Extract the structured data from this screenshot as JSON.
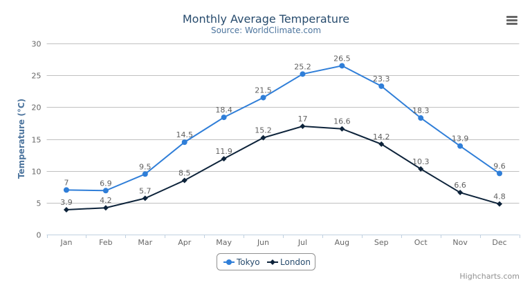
{
  "menu_icon": "hamburger-menu-icon",
  "credits": "Highcharts.com",
  "chart_data": {
    "type": "line",
    "title": "Monthly Average Temperature",
    "subtitle": "Source: WorldClimate.com",
    "xlabel": "",
    "ylabel": "Temperature (°C)",
    "categories": [
      "Jan",
      "Feb",
      "Mar",
      "Apr",
      "May",
      "Jun",
      "Jul",
      "Aug",
      "Sep",
      "Oct",
      "Nov",
      "Dec"
    ],
    "ylim": [
      0,
      30
    ],
    "yticks": [
      0,
      5,
      10,
      15,
      20,
      25,
      30
    ],
    "grid": true,
    "legend": "bottom-center",
    "data_labels": true,
    "series": [
      {
        "name": "Tokyo",
        "color": "#2f7ed8",
        "marker": "circle",
        "values": [
          7.0,
          6.9,
          9.5,
          14.5,
          18.4,
          21.5,
          25.2,
          26.5,
          23.3,
          18.3,
          13.9,
          9.6
        ]
      },
      {
        "name": "London",
        "color": "#0d233a",
        "marker": "diamond",
        "values": [
          3.9,
          4.2,
          5.7,
          8.5,
          11.9,
          15.2,
          17.0,
          16.6,
          14.2,
          10.3,
          6.6,
          4.8
        ]
      }
    ]
  }
}
